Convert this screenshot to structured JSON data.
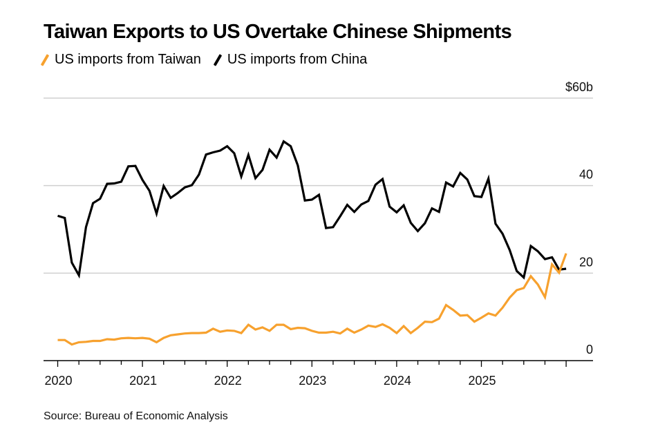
{
  "chart_data": {
    "type": "line",
    "title": "Taiwan Exports to US Overtake Chinese Shipments",
    "xlabel": "",
    "ylabel": "",
    "y_unit_label": "$60b",
    "ylim": [
      0,
      60
    ],
    "yticks": [
      0,
      20,
      40,
      60
    ],
    "ytick_labels": [
      "0",
      "20",
      "40",
      "$60b"
    ],
    "xticks": [
      "2020",
      "2021",
      "2022",
      "2023",
      "2024",
      "2025"
    ],
    "x_start": "2020-01",
    "x_frequency": "monthly",
    "grid": true,
    "legend_position": "top-left",
    "source": "Source: Bureau of Economic Analysis",
    "series": [
      {
        "name": "US imports from Taiwan",
        "color": "#F7A12E",
        "values": [
          4.7,
          4.7,
          3.7,
          4.2,
          4.3,
          4.5,
          4.5,
          4.9,
          4.8,
          5.1,
          5.2,
          5.1,
          5.2,
          5.0,
          4.2,
          5.2,
          5.8,
          6.0,
          6.2,
          6.3,
          6.3,
          6.4,
          7.3,
          6.6,
          6.9,
          6.8,
          6.3,
          8.2,
          7.1,
          7.6,
          6.8,
          8.2,
          8.2,
          7.2,
          7.5,
          7.4,
          6.8,
          6.4,
          6.4,
          6.6,
          6.2,
          7.3,
          6.4,
          7.1,
          8.0,
          7.7,
          8.3,
          7.5,
          6.3,
          7.9,
          6.3,
          7.5,
          8.9,
          8.8,
          9.6,
          12.7,
          11.6,
          10.3,
          10.4,
          8.9,
          9.8,
          10.8,
          10.3,
          12.1,
          14.4,
          16.1,
          16.6,
          19.3,
          17.4,
          14.5,
          22.0,
          20.1,
          24.5
        ]
      },
      {
        "name": "US imports from China",
        "color": "#000000",
        "values": [
          33.1,
          32.6,
          22.4,
          19.5,
          30.5,
          36.0,
          37.0,
          40.4,
          40.5,
          40.9,
          44.4,
          44.5,
          41.3,
          38.8,
          33.6,
          39.9,
          37.2,
          38.3,
          39.6,
          40.1,
          42.5,
          47.1,
          47.6,
          48.0,
          49.0,
          47.4,
          42.1,
          47.0,
          41.7,
          43.6,
          48.2,
          46.4,
          50.1,
          49.0,
          44.6,
          36.6,
          36.8,
          37.9,
          30.3,
          30.5,
          33.0,
          35.6,
          34.0,
          35.7,
          36.5,
          40.2,
          41.5,
          35.2,
          33.9,
          35.5,
          31.5,
          29.6,
          31.4,
          34.8,
          34.0,
          40.7,
          39.8,
          42.9,
          41.4,
          37.6,
          37.4,
          41.6,
          31.3,
          29.0,
          25.3,
          20.5,
          19.0,
          26.2,
          25.0,
          23.2,
          23.6,
          20.8,
          21.0
        ]
      }
    ]
  }
}
